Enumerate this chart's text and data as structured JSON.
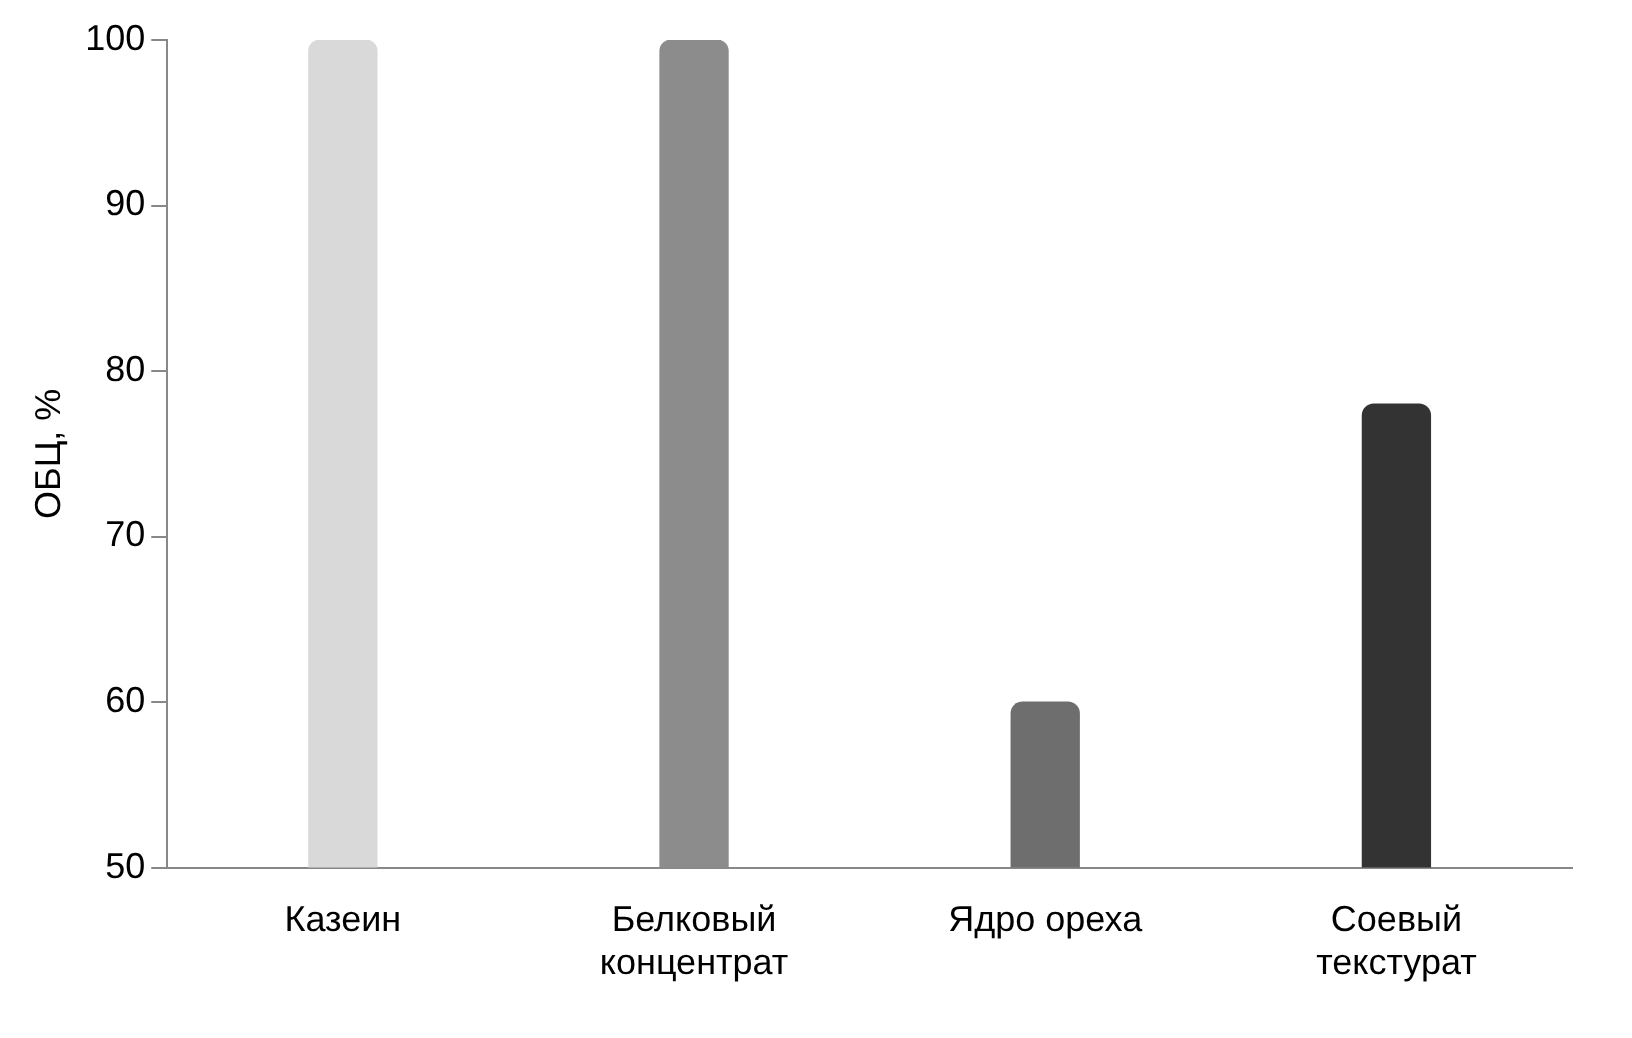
{
  "chart_data": {
    "type": "bar",
    "ylabel": "ОБЦ, %",
    "categories": [
      "Казеин",
      "Белковый концентрат",
      "Ядро ореха",
      "Соевый текстурат"
    ],
    "values": [
      100,
      100,
      60,
      78
    ],
    "colors": [
      "#d9d9d9",
      "#8c8c8c",
      "#6e6e6e",
      "#333333"
    ],
    "ylim": [
      50,
      100
    ],
    "yticks": [
      50,
      60,
      70,
      80,
      90,
      100
    ],
    "grid": false,
    "legend": false
  }
}
